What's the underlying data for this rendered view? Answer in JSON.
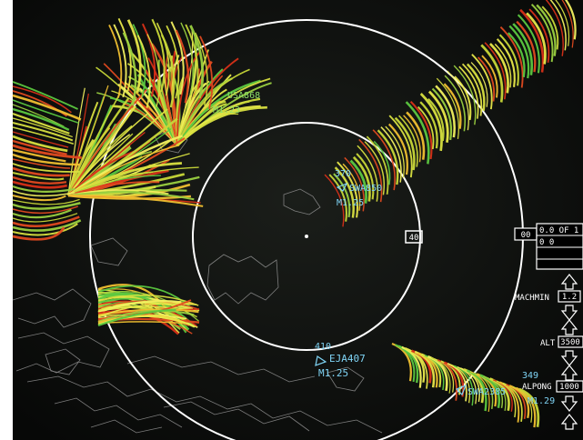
{
  "display": {
    "range_ring_label": "40"
  },
  "aircraft": [
    {
      "id": "ac1",
      "altitude": "",
      "callsign": "USA868",
      "speed": "M1.23",
      "color": "#8fe26a"
    },
    {
      "id": "ac2",
      "altitude": "370",
      "callsign": "SWA850",
      "speed": "M1.25",
      "color": "#7fd4f5"
    },
    {
      "id": "ac3",
      "altitude": "410",
      "callsign": "EJA407",
      "speed": "M1.25",
      "color": "#7fd4f5"
    },
    {
      "id": "ac4",
      "altitude": "349",
      "callsign": "SWA2385",
      "speed": "M1.29",
      "color": "#7fd4f5"
    }
  ],
  "controls": {
    "top_value": "00",
    "readout_1": "0.0 OF 1",
    "readout_2": "0 0",
    "machmin_label": "MACHMIN",
    "machmin_value": "1.2",
    "alt_label": "ALT",
    "alt_value": "3500",
    "alpong_label": "ALPONG",
    "alpong_value": "1000"
  }
}
